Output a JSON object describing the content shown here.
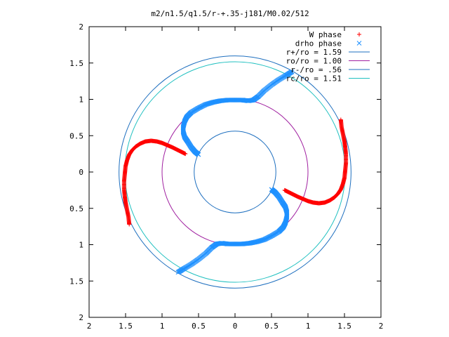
{
  "chart_data": {
    "type": "scatter",
    "title": "m2/n1.5/q1.5/r-+.35-j181/M0.02/512",
    "xlim": [
      -2,
      2
    ],
    "ylim": [
      -2,
      2
    ],
    "x_tick_labels": [
      "2",
      "1.5",
      "1",
      "0.5",
      "0",
      "0.5",
      "1",
      "1.5",
      "2"
    ],
    "y_tick_labels": [
      "2",
      "1.5",
      "1",
      "0.5",
      "0",
      "0.5",
      "1",
      "1.5",
      "2"
    ],
    "grid": false,
    "legend_position": "top-right",
    "series": [
      {
        "name": "W phase",
        "kind": "points",
        "marker": "+",
        "color": "#ff0000",
        "arms": [
          {
            "x": [
              1.45,
              1.46,
              1.48,
              1.5,
              1.51,
              1.52,
              1.52,
              1.51,
              1.5,
              1.48,
              1.45,
              1.41,
              1.36,
              1.3,
              1.23,
              1.15,
              1.07,
              1.0,
              0.93,
              0.86,
              0.8,
              0.74,
              0.68
            ],
            "y": [
              0.72,
              0.62,
              0.52,
              0.42,
              0.34,
              0.24,
              0.12,
              0.02,
              -0.08,
              -0.16,
              -0.24,
              -0.3,
              -0.35,
              -0.39,
              -0.42,
              -0.43,
              -0.42,
              -0.4,
              -0.37,
              -0.34,
              -0.31,
              -0.28,
              -0.25
            ]
          },
          {
            "x": [
              -1.45,
              -1.46,
              -1.48,
              -1.5,
              -1.51,
              -1.52,
              -1.52,
              -1.51,
              -1.5,
              -1.48,
              -1.45,
              -1.41,
              -1.36,
              -1.3,
              -1.23,
              -1.15,
              -1.07,
              -1.0,
              -0.93,
              -0.86,
              -0.8,
              -0.74,
              -0.68
            ],
            "y": [
              -0.72,
              -0.62,
              -0.52,
              -0.42,
              -0.34,
              -0.24,
              -0.12,
              -0.02,
              0.08,
              0.16,
              0.24,
              0.3,
              0.35,
              0.39,
              0.42,
              0.43,
              0.42,
              0.4,
              0.37,
              0.34,
              0.31,
              0.28,
              0.25
            ]
          }
        ]
      },
      {
        "name": "drho phase",
        "kind": "points",
        "marker": "x",
        "color": "#1e90ff",
        "arms": [
          {
            "x": [
              0.5,
              0.55,
              0.6,
              0.65,
              0.69,
              0.71,
              0.71,
              0.69,
              0.66,
              0.6,
              0.5,
              0.4,
              0.3,
              0.2,
              0.1,
              0.0,
              -0.1,
              -0.18,
              -0.25,
              -0.32,
              -0.4,
              -0.5,
              -0.6,
              -0.7,
              -0.78
            ],
            "y": [
              -0.24,
              -0.28,
              -0.34,
              -0.42,
              -0.48,
              -0.55,
              -0.62,
              -0.7,
              -0.76,
              -0.82,
              -0.88,
              -0.93,
              -0.96,
              -0.98,
              -0.99,
              -0.99,
              -0.99,
              -0.98,
              -0.99,
              -1.04,
              -1.12,
              -1.2,
              -1.27,
              -1.33,
              -1.38
            ]
          },
          {
            "x": [
              -0.5,
              -0.55,
              -0.6,
              -0.65,
              -0.69,
              -0.71,
              -0.71,
              -0.69,
              -0.66,
              -0.6,
              -0.5,
              -0.4,
              -0.3,
              -0.2,
              -0.1,
              0.0,
              0.1,
              0.18,
              0.25,
              0.32,
              0.4,
              0.5,
              0.6,
              0.7,
              0.78
            ],
            "y": [
              0.24,
              0.28,
              0.34,
              0.42,
              0.48,
              0.55,
              0.62,
              0.7,
              0.76,
              0.82,
              0.88,
              0.93,
              0.96,
              0.98,
              0.99,
              0.99,
              0.99,
              0.98,
              0.99,
              1.04,
              1.12,
              1.2,
              1.27,
              1.33,
              1.38
            ]
          }
        ]
      },
      {
        "name": "r+/ro = 1.59",
        "kind": "circle",
        "radius": 1.59,
        "color": "#1e6fbf"
      },
      {
        "name": "ro/ro = 1.00",
        "kind": "circle",
        "radius": 1.0,
        "color": "#a020a0"
      },
      {
        "name": "r-/ro = .56",
        "kind": "circle",
        "radius": 0.56,
        "color": "#1e6fbf"
      },
      {
        "name": "rc/ro = 1.51",
        "kind": "circle",
        "radius": 1.51,
        "color": "#20c0c0"
      }
    ]
  }
}
